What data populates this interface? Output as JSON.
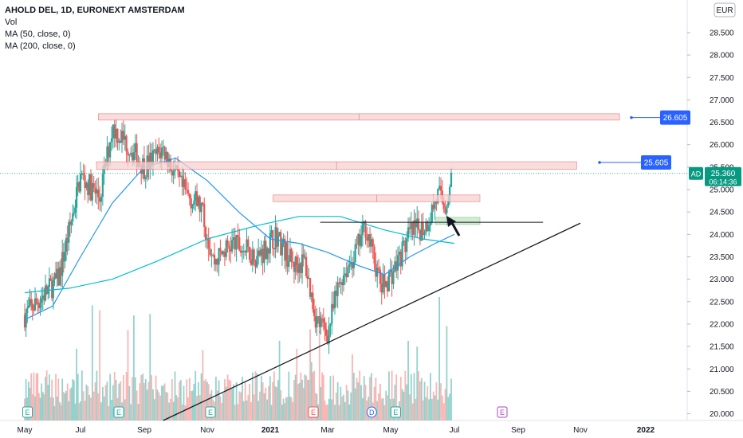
{
  "legend": {
    "title": "AHOLD DEL, 1D, EURONEXT AMSTERDAM",
    "vol": "Vol",
    "ma50": "MA (50, close, 0)",
    "ma200": "MA (200, close, 0)"
  },
  "currency": "EUR",
  "symbol_tag": "AD",
  "last_price": "25.360",
  "countdown": "06:14:36",
  "colors": {
    "up": "#26a69a",
    "down": "#ef5350",
    "vol_up": "#80cbc4",
    "vol_down": "#f7a9a7",
    "ma50": "#2196f3",
    "ma200": "#00bcd4",
    "zone_fill": "#f8d2d2",
    "zone_stroke": "#e57373",
    "green_zone": "#c8e6c9",
    "label_blue": "#2962ff",
    "price_tag": "#089981"
  },
  "chart_data": {
    "type": "candlestick",
    "x_axis": {
      "ticks": [
        "May",
        "Jul",
        "Sep",
        "Nov",
        "2021",
        "Mar",
        "May",
        "Jul",
        "Sep",
        "Nov",
        "2022"
      ],
      "bold_ticks": [
        "2021",
        "2022"
      ]
    },
    "y_axis": {
      "range": [
        19.85,
        29.05
      ],
      "ticks": [
        "20.000",
        "20.500",
        "21.000",
        "21.500",
        "22.000",
        "22.500",
        "23.000",
        "23.500",
        "24.000",
        "24.500",
        "25.000",
        "25.500",
        "26.000",
        "26.500",
        "27.000",
        "27.500",
        "28.000",
        "28.500"
      ]
    },
    "resistance_labels": [
      "26.605",
      "25.605"
    ],
    "event_markers": [
      {
        "label": "E",
        "tick": 0.05
      },
      {
        "label": "E",
        "tick": 1.6
      },
      {
        "label": "E",
        "tick": 3.05
      },
      {
        "label": "E",
        "tick": 4.75
      },
      {
        "label": "D",
        "tick": 5.7
      },
      {
        "label": "E",
        "tick": 6.08
      },
      {
        "label": "E",
        "tick": 7.75
      }
    ],
    "price_path": [
      [
        0.0,
        22.2
      ],
      [
        0.3,
        22.6
      ],
      [
        0.6,
        23.0
      ],
      [
        0.8,
        24.1
      ],
      [
        1.0,
        25.3
      ],
      [
        1.3,
        24.8
      ],
      [
        1.5,
        26.4
      ],
      [
        1.8,
        25.9
      ],
      [
        2.0,
        25.5
      ],
      [
        2.3,
        25.9
      ],
      [
        2.6,
        25.0
      ],
      [
        2.9,
        24.6
      ],
      [
        3.1,
        23.4
      ],
      [
        3.4,
        23.8
      ],
      [
        3.8,
        23.5
      ],
      [
        4.1,
        24.0
      ],
      [
        4.4,
        23.3
      ],
      [
        4.6,
        23.4
      ],
      [
        4.8,
        22.1
      ],
      [
        5.0,
        21.8
      ],
      [
        5.2,
        23.0
      ],
      [
        5.45,
        23.6
      ],
      [
        5.6,
        24.2
      ],
      [
        5.85,
        22.8
      ],
      [
        6.05,
        23.2
      ],
      [
        6.3,
        24.0
      ],
      [
        6.55,
        24.2
      ],
      [
        6.75,
        24.9
      ],
      [
        6.85,
        24.6
      ],
      [
        6.95,
        25.2
      ]
    ],
    "ma50_path": [
      [
        0.0,
        22.1
      ],
      [
        0.5,
        22.4
      ],
      [
        1.0,
        23.5
      ],
      [
        1.5,
        24.7
      ],
      [
        2.0,
        25.5
      ],
      [
        2.5,
        25.7
      ],
      [
        3.0,
        25.2
      ],
      [
        3.5,
        24.5
      ],
      [
        4.0,
        23.9
      ],
      [
        4.5,
        23.8
      ],
      [
        5.0,
        23.6
      ],
      [
        5.5,
        23.3
      ],
      [
        5.9,
        23.1
      ],
      [
        6.3,
        23.5
      ],
      [
        6.7,
        23.8
      ],
      [
        7.0,
        24.0
      ]
    ],
    "ma200_path": [
      [
        0.0,
        22.7
      ],
      [
        0.8,
        22.8
      ],
      [
        1.5,
        23.0
      ],
      [
        2.2,
        23.4
      ],
      [
        3.0,
        23.9
      ],
      [
        3.8,
        24.2
      ],
      [
        4.5,
        24.4
      ],
      [
        5.2,
        24.4
      ],
      [
        5.9,
        24.1
      ],
      [
        6.5,
        23.9
      ],
      [
        7.0,
        23.8
      ]
    ],
    "resistance_zones": [
      {
        "t0": 1.28,
        "t1": 9.6,
        "low": 26.55,
        "high": 26.69
      },
      {
        "t0": 1.25,
        "t1": 8.94,
        "low": 25.45,
        "high": 25.62
      },
      {
        "t0": 4.05,
        "t1": 7.4,
        "low": 24.73,
        "high": 24.88
      }
    ],
    "support_zone": {
      "t0": 6.7,
      "t1": 7.4,
      "low": 24.22,
      "high": 24.38
    },
    "support_line": {
      "t0": 4.87,
      "t1": 8.4,
      "price": 24.27
    },
    "trendline": {
      "t0": 2.3,
      "t1": 9.0,
      "p0": 19.85,
      "p1": 24.25
    }
  }
}
